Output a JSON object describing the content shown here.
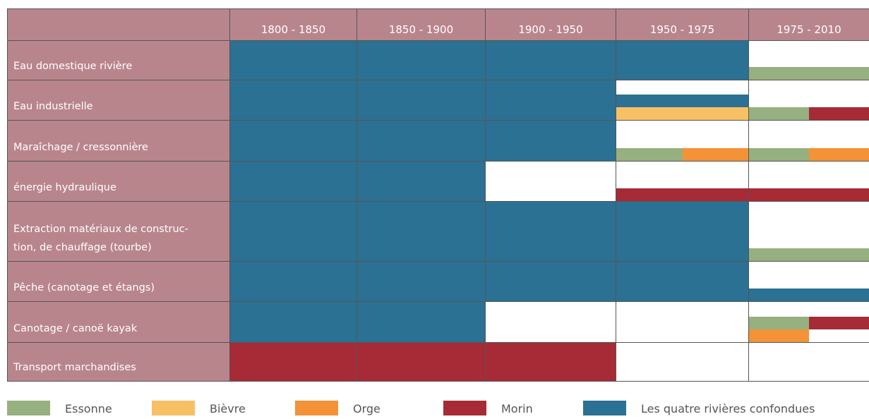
{
  "columns": [
    "1800 - 1850",
    "1850 - 1900",
    "1900 - 1950",
    "1950 - 1975",
    "1975 - 2010"
  ],
  "legend": [
    {
      "name": "Essonne",
      "color": "#97b07f"
    },
    {
      "name": "Bièvre",
      "color": "#f8c064"
    },
    {
      "name": "Orge",
      "color": "#f39237"
    },
    {
      "name": "Morin",
      "color": "#a62b36"
    },
    {
      "name": "Les quatre rivières confondues",
      "color": "#2b7193"
    }
  ],
  "rows": [
    {
      "label": "Eau domestique rivière",
      "cells": [
        {
          "full": "Les quatre rivières confondues"
        },
        {
          "full": "Les quatre rivières confondues"
        },
        {
          "full": "Les quatre rivières confondues"
        },
        {
          "full": "Les quatre rivières confondues"
        },
        {
          "bars": [
            [
              "Essonne"
            ]
          ]
        }
      ]
    },
    {
      "label": "Eau industrielle",
      "cells": [
        {
          "full": "Les quatre rivières confondues"
        },
        {
          "full": "Les quatre rivières confondues"
        },
        {
          "full": "Les quatre rivières confondues"
        },
        {
          "bars": [
            [
              "Les quatre rivières confondues"
            ],
            [
              "Bièvre"
            ]
          ]
        },
        {
          "bars": [
            [
              "Essonne",
              "Morin"
            ]
          ]
        }
      ]
    },
    {
      "label": "Maraîchage / cressonnière",
      "cells": [
        {
          "full": "Les quatre rivières confondues"
        },
        {
          "full": "Les quatre rivières confondues"
        },
        {
          "full": "Les quatre rivières confondues"
        },
        {
          "bars": [
            [
              "Essonne",
              "Orge"
            ]
          ]
        },
        {
          "bars": [
            [
              "Essonne",
              "Orge"
            ]
          ]
        }
      ]
    },
    {
      "label": "énergie hydraulique",
      "cells": [
        {
          "full": "Les quatre rivières confondues"
        },
        {
          "full": "Les quatre rivières confondues"
        },
        {},
        {
          "bars": [
            [
              "Morin"
            ]
          ]
        },
        {
          "bars": [
            [
              "Morin"
            ]
          ]
        }
      ]
    },
    {
      "label": "Extraction matériaux de construc-\ntion, de chauffage (tourbe)",
      "cells": [
        {
          "full": "Les quatre rivières confondues"
        },
        {
          "full": "Les quatre rivières confondues"
        },
        {
          "full": "Les quatre rivières confondues"
        },
        {
          "full": "Les quatre rivières confondues"
        },
        {
          "bars": [
            [
              "Essonne"
            ]
          ]
        }
      ]
    },
    {
      "label": "Pêche (canotage et étangs)",
      "cells": [
        {
          "full": "Les quatre rivières confondues"
        },
        {
          "full": "Les quatre rivières confondues"
        },
        {
          "full": "Les quatre rivières confondues"
        },
        {
          "full": "Les quatre rivières confondues"
        },
        {
          "bars": [
            [
              "Les quatre rivières confondues"
            ]
          ]
        }
      ]
    },
    {
      "label": "Canotage / canoë kayak",
      "cells": [
        {
          "full": "Les quatre rivières confondues"
        },
        {
          "full": "Les quatre rivières confondues"
        },
        {},
        {},
        {
          "bars": [
            [
              "Essonne",
              "Morin"
            ],
            [
              "Orge",
              null
            ]
          ]
        }
      ]
    },
    {
      "label": "Transport marchandises",
      "cells": [
        {
          "full": "Morin"
        },
        {
          "full": "Morin"
        },
        {
          "full": "Morin"
        },
        {},
        {}
      ]
    }
  ]
}
